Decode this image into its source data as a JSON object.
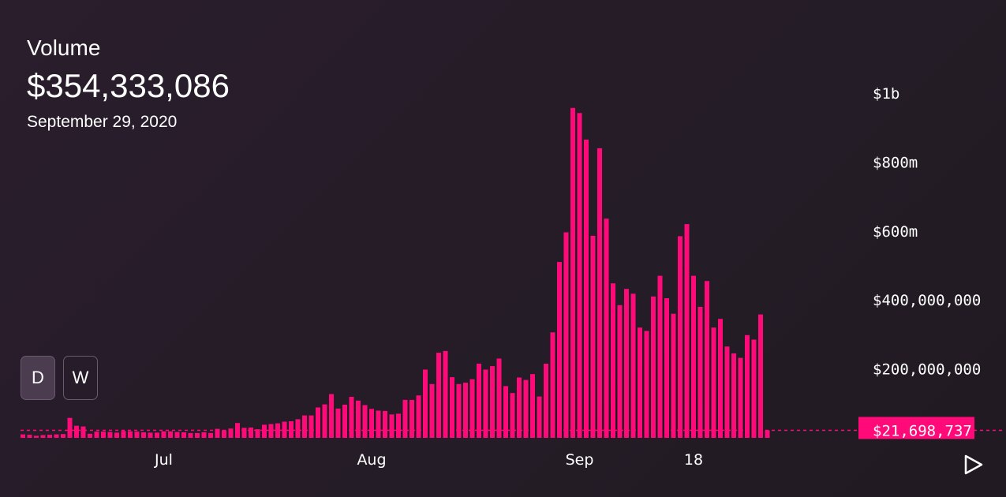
{
  "metric": {
    "label": "Volume",
    "value": "$354,333,086",
    "date": "September 29, 2020"
  },
  "toggles": {
    "day": "D",
    "week": "W"
  },
  "colors": {
    "bar": "#ff0a78",
    "text": "#ffffff",
    "background": "#261d28"
  },
  "icons": {
    "play": "play-icon"
  },
  "chart_data": {
    "type": "bar",
    "title": "",
    "x_tick_labels": [
      "Jul",
      "Aug",
      "Sep",
      "18"
    ],
    "y_tick_labels": [
      "$1b",
      "$800m",
      "$600m",
      "$400,000,000",
      "$200,000,000"
    ],
    "y_tick_values": [
      1000000000,
      800000000,
      600000000,
      400000000,
      200000000
    ],
    "ylim": [
      0,
      1000000000
    ],
    "reference_line": {
      "label": "$21,698,737",
      "value": 21698737
    },
    "grid": false,
    "values": [
      10000000,
      9000000,
      6000000,
      8000000,
      9000000,
      10000000,
      11000000,
      58000000,
      35000000,
      33000000,
      12000000,
      18000000,
      18000000,
      17000000,
      15000000,
      20000000,
      19000000,
      18000000,
      16000000,
      15000000,
      15000000,
      19000000,
      19000000,
      17000000,
      16000000,
      14000000,
      14000000,
      16000000,
      14000000,
      26000000,
      22000000,
      27000000,
      43000000,
      29000000,
      30000000,
      25000000,
      38000000,
      40000000,
      42000000,
      47000000,
      48000000,
      54000000,
      65000000,
      65000000,
      88000000,
      97000000,
      127000000,
      85000000,
      96000000,
      119000000,
      108000000,
      95000000,
      84000000,
      79000000,
      78000000,
      68000000,
      70000000,
      110000000,
      110000000,
      123000000,
      198000000,
      156000000,
      247000000,
      252000000,
      176000000,
      156000000,
      160000000,
      170000000,
      215000000,
      198000000,
      208000000,
      230000000,
      150000000,
      130000000,
      175000000,
      168000000,
      185000000,
      120000000,
      215000000,
      306000000,
      510000000,
      596000000,
      957000000,
      942000000,
      865000000,
      586000000,
      840000000,
      636000000,
      448000000,
      385000000,
      432000000,
      418000000,
      320000000,
      310000000,
      410000000,
      470000000,
      405000000,
      360000000,
      585000000,
      620000000,
      470000000,
      380000000,
      455000000,
      320000000,
      345000000,
      265000000,
      245000000,
      232000000,
      298000000,
      285000000,
      358000000,
      21698737
    ]
  }
}
